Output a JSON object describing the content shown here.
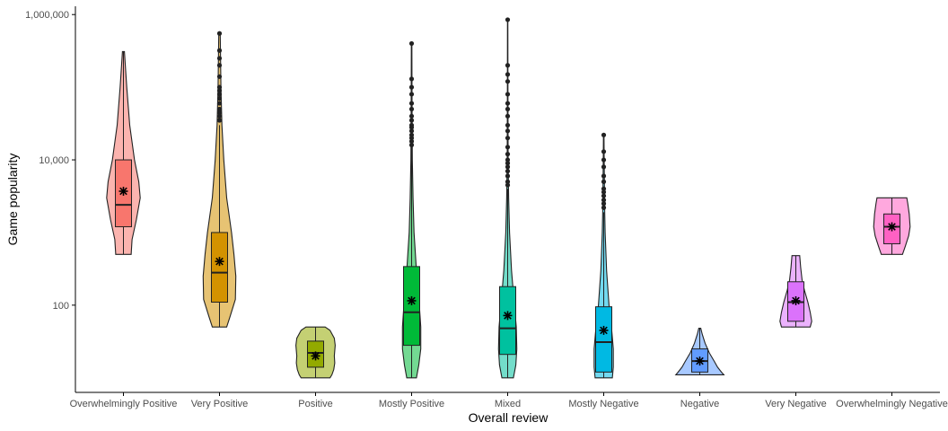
{
  "chart_data": {
    "type": "violin",
    "xlabel": "Overall review",
    "ylabel": "Game popularity",
    "y_scale": "log10",
    "ylim": [
      6.3,
      1300000
    ],
    "yticks": [
      {
        "value": 100,
        "label": "100"
      },
      {
        "value": 10000,
        "label": "10,000"
      },
      {
        "value": 1000000,
        "label": "1,000,000"
      }
    ],
    "legend": "none",
    "grid": false,
    "categories": [
      {
        "name": "Overwhelmingly Positive",
        "color": "#F8766D",
        "min": 500,
        "max": 310000,
        "q1": 1200,
        "median": 2400,
        "q3": 10000,
        "mean": 3700,
        "whisker_low": 500,
        "whisker_high": 310000,
        "violin": [
          [
            500,
            0.16
          ],
          [
            800,
            0.18
          ],
          [
            1500,
            0.27
          ],
          [
            3000,
            0.35
          ],
          [
            5000,
            0.32
          ],
          [
            10000,
            0.23
          ],
          [
            30000,
            0.13
          ],
          [
            100000,
            0.07
          ],
          [
            200000,
            0.04
          ],
          [
            310000,
            0.02
          ]
        ],
        "outliers": []
      },
      {
        "name": "Very Positive",
        "color": "#D39200",
        "min": 50,
        "max": 550000,
        "q1": 110,
        "median": 280,
        "q3": 1000,
        "mean": 400,
        "whisker_low": 50,
        "whisker_high": 30000,
        "violin": [
          [
            50,
            0.15
          ],
          [
            70,
            0.22
          ],
          [
            120,
            0.33
          ],
          [
            250,
            0.34
          ],
          [
            500,
            0.3
          ],
          [
            1000,
            0.25
          ],
          [
            3000,
            0.15
          ],
          [
            10000,
            0.09
          ],
          [
            30000,
            0.05
          ],
          [
            100000,
            0.03
          ],
          [
            300000,
            0.02
          ],
          [
            550000,
            0.015
          ]
        ],
        "outliers": [
          35000,
          40000,
          45000,
          50000,
          60000,
          70000,
          80000,
          90000,
          100000,
          140000,
          200000,
          250000,
          320000,
          550000
        ]
      },
      {
        "name": "Positive",
        "color": "#93AA00",
        "min": 10,
        "max": 50,
        "q1": 14,
        "median": 22,
        "q3": 32,
        "mean": 20,
        "whisker_low": 10,
        "whisker_high": 50,
        "violin": [
          [
            10,
            0.3
          ],
          [
            11,
            0.34
          ],
          [
            13,
            0.38
          ],
          [
            16,
            0.4
          ],
          [
            20,
            0.39
          ],
          [
            28,
            0.41
          ],
          [
            35,
            0.39
          ],
          [
            45,
            0.3
          ],
          [
            50,
            0.2
          ]
        ],
        "outliers": []
      },
      {
        "name": "Mostly Positive",
        "color": "#00BA38",
        "min": 10,
        "max": 400000,
        "q1": 28,
        "median": 80,
        "q3": 340,
        "mean": 115,
        "whisker_low": 10,
        "whisker_high": 15000,
        "violin": [
          [
            10,
            0.1
          ],
          [
            15,
            0.15
          ],
          [
            25,
            0.19
          ],
          [
            50,
            0.19
          ],
          [
            100,
            0.16
          ],
          [
            300,
            0.1
          ],
          [
            1000,
            0.05
          ],
          [
            3000,
            0.03
          ],
          [
            10000,
            0.015
          ],
          [
            50000,
            0.01
          ],
          [
            400000,
            0.005
          ]
        ],
        "outliers": [
          16000,
          18000,
          20000,
          22000,
          25000,
          28000,
          30000,
          35000,
          40000,
          50000,
          60000,
          80000,
          100000,
          130000,
          400000
        ]
      },
      {
        "name": "Mixed",
        "color": "#00C19F",
        "min": 10,
        "max": 850000,
        "q1": 21,
        "median": 48,
        "q3": 180,
        "mean": 72,
        "whisker_low": 10,
        "whisker_high": 4000,
        "violin": [
          [
            10,
            0.12
          ],
          [
            15,
            0.17
          ],
          [
            25,
            0.19
          ],
          [
            50,
            0.18
          ],
          [
            100,
            0.14
          ],
          [
            300,
            0.08
          ],
          [
            1000,
            0.04
          ],
          [
            3000,
            0.02
          ],
          [
            10000,
            0.01
          ],
          [
            100000,
            0.006
          ],
          [
            850000,
            0.003
          ]
        ],
        "outliers": [
          4500,
          5000,
          6000,
          7000,
          8000,
          9000,
          10000,
          12000,
          15000,
          20000,
          25000,
          30000,
          40000,
          50000,
          60000,
          80000,
          120000,
          150000,
          200000,
          850000
        ]
      },
      {
        "name": "Mostly Negative",
        "color": "#00B9E3",
        "min": 10,
        "max": 22000,
        "q1": 12,
        "median": 31,
        "q3": 95,
        "mean": 45,
        "whisker_low": 10,
        "whisker_high": 1900,
        "violin": [
          [
            10,
            0.18
          ],
          [
            14,
            0.2
          ],
          [
            25,
            0.2
          ],
          [
            50,
            0.16
          ],
          [
            100,
            0.11
          ],
          [
            300,
            0.06
          ],
          [
            1000,
            0.03
          ],
          [
            2000,
            0.02
          ],
          [
            10000,
            0.01
          ],
          [
            22000,
            0.005
          ]
        ],
        "outliers": [
          2200,
          2500,
          2800,
          3200,
          3600,
          4000,
          5000,
          6000,
          8000,
          10000,
          13000,
          22000
        ]
      },
      {
        "name": "Negative",
        "color": "#619CFF",
        "min": 11,
        "max": 48,
        "q1": 12,
        "median": 17,
        "q3": 25,
        "mean": 17,
        "whisker_low": 11,
        "whisker_high": 48,
        "violin": [
          [
            11,
            0.5
          ],
          [
            12,
            0.45
          ],
          [
            14,
            0.37
          ],
          [
            17,
            0.3
          ],
          [
            22,
            0.2
          ],
          [
            30,
            0.11
          ],
          [
            40,
            0.05
          ],
          [
            48,
            0.02
          ]
        ],
        "outliers": []
      },
      {
        "name": "Very Negative",
        "color": "#DB72FB",
        "min": 50,
        "max": 480,
        "q1": 60,
        "median": 110,
        "q3": 210,
        "mean": 115,
        "whisker_low": 50,
        "whisker_high": 480,
        "violin": [
          [
            50,
            0.3
          ],
          [
            60,
            0.33
          ],
          [
            80,
            0.3
          ],
          [
            110,
            0.25
          ],
          [
            160,
            0.18
          ],
          [
            220,
            0.13
          ],
          [
            330,
            0.1
          ],
          [
            480,
            0.08
          ]
        ],
        "outliers": []
      },
      {
        "name": "Overwhelmingly Negative",
        "color": "#FF61C3",
        "min": 500,
        "max": 3000,
        "q1": 700,
        "median": 1200,
        "q3": 1800,
        "mean": 1200,
        "whisker_low": 500,
        "whisker_high": 3000,
        "violin": [
          [
            500,
            0.22
          ],
          [
            650,
            0.28
          ],
          [
            900,
            0.35
          ],
          [
            1200,
            0.38
          ],
          [
            1800,
            0.36
          ],
          [
            2500,
            0.33
          ],
          [
            3000,
            0.31
          ]
        ],
        "outliers": []
      }
    ]
  }
}
